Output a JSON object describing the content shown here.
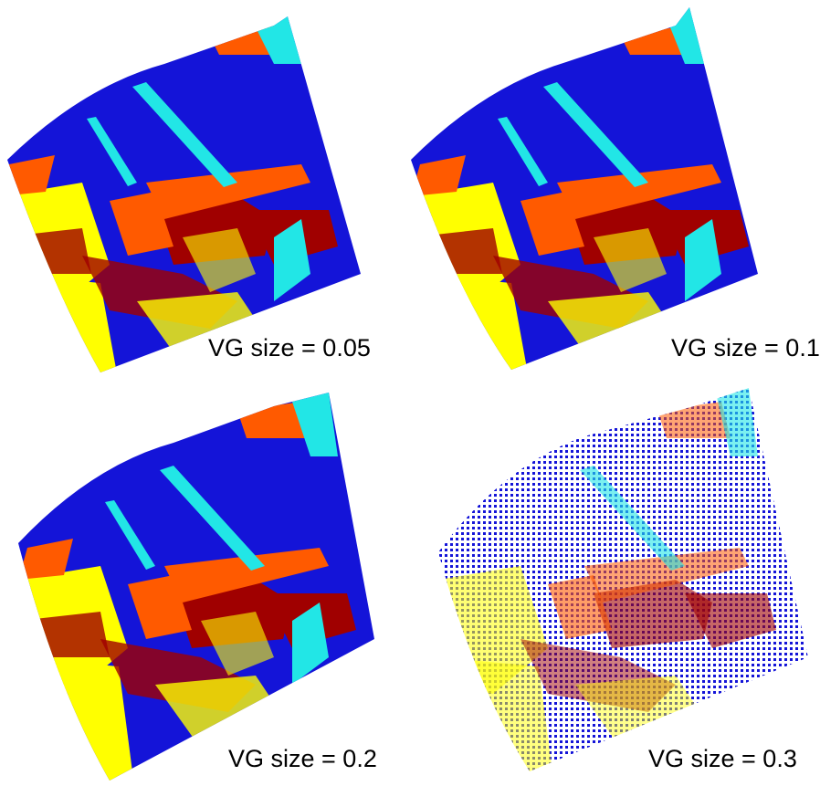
{
  "colors": {
    "blue": "#1414d8",
    "yellow": "#ffff00",
    "orange": "#ff5a00",
    "dark_red": "#a00000",
    "cyan": "#22e6e6",
    "background": "#ffffff"
  },
  "panels": [
    {
      "caption": "VG size = 0.05",
      "density": "dense"
    },
    {
      "caption": "VG size = 0.1",
      "density": "dense"
    },
    {
      "caption": "VG size = 0.2",
      "density": "medium"
    },
    {
      "caption": "VG size = 0.3",
      "density": "sparse"
    }
  ]
}
